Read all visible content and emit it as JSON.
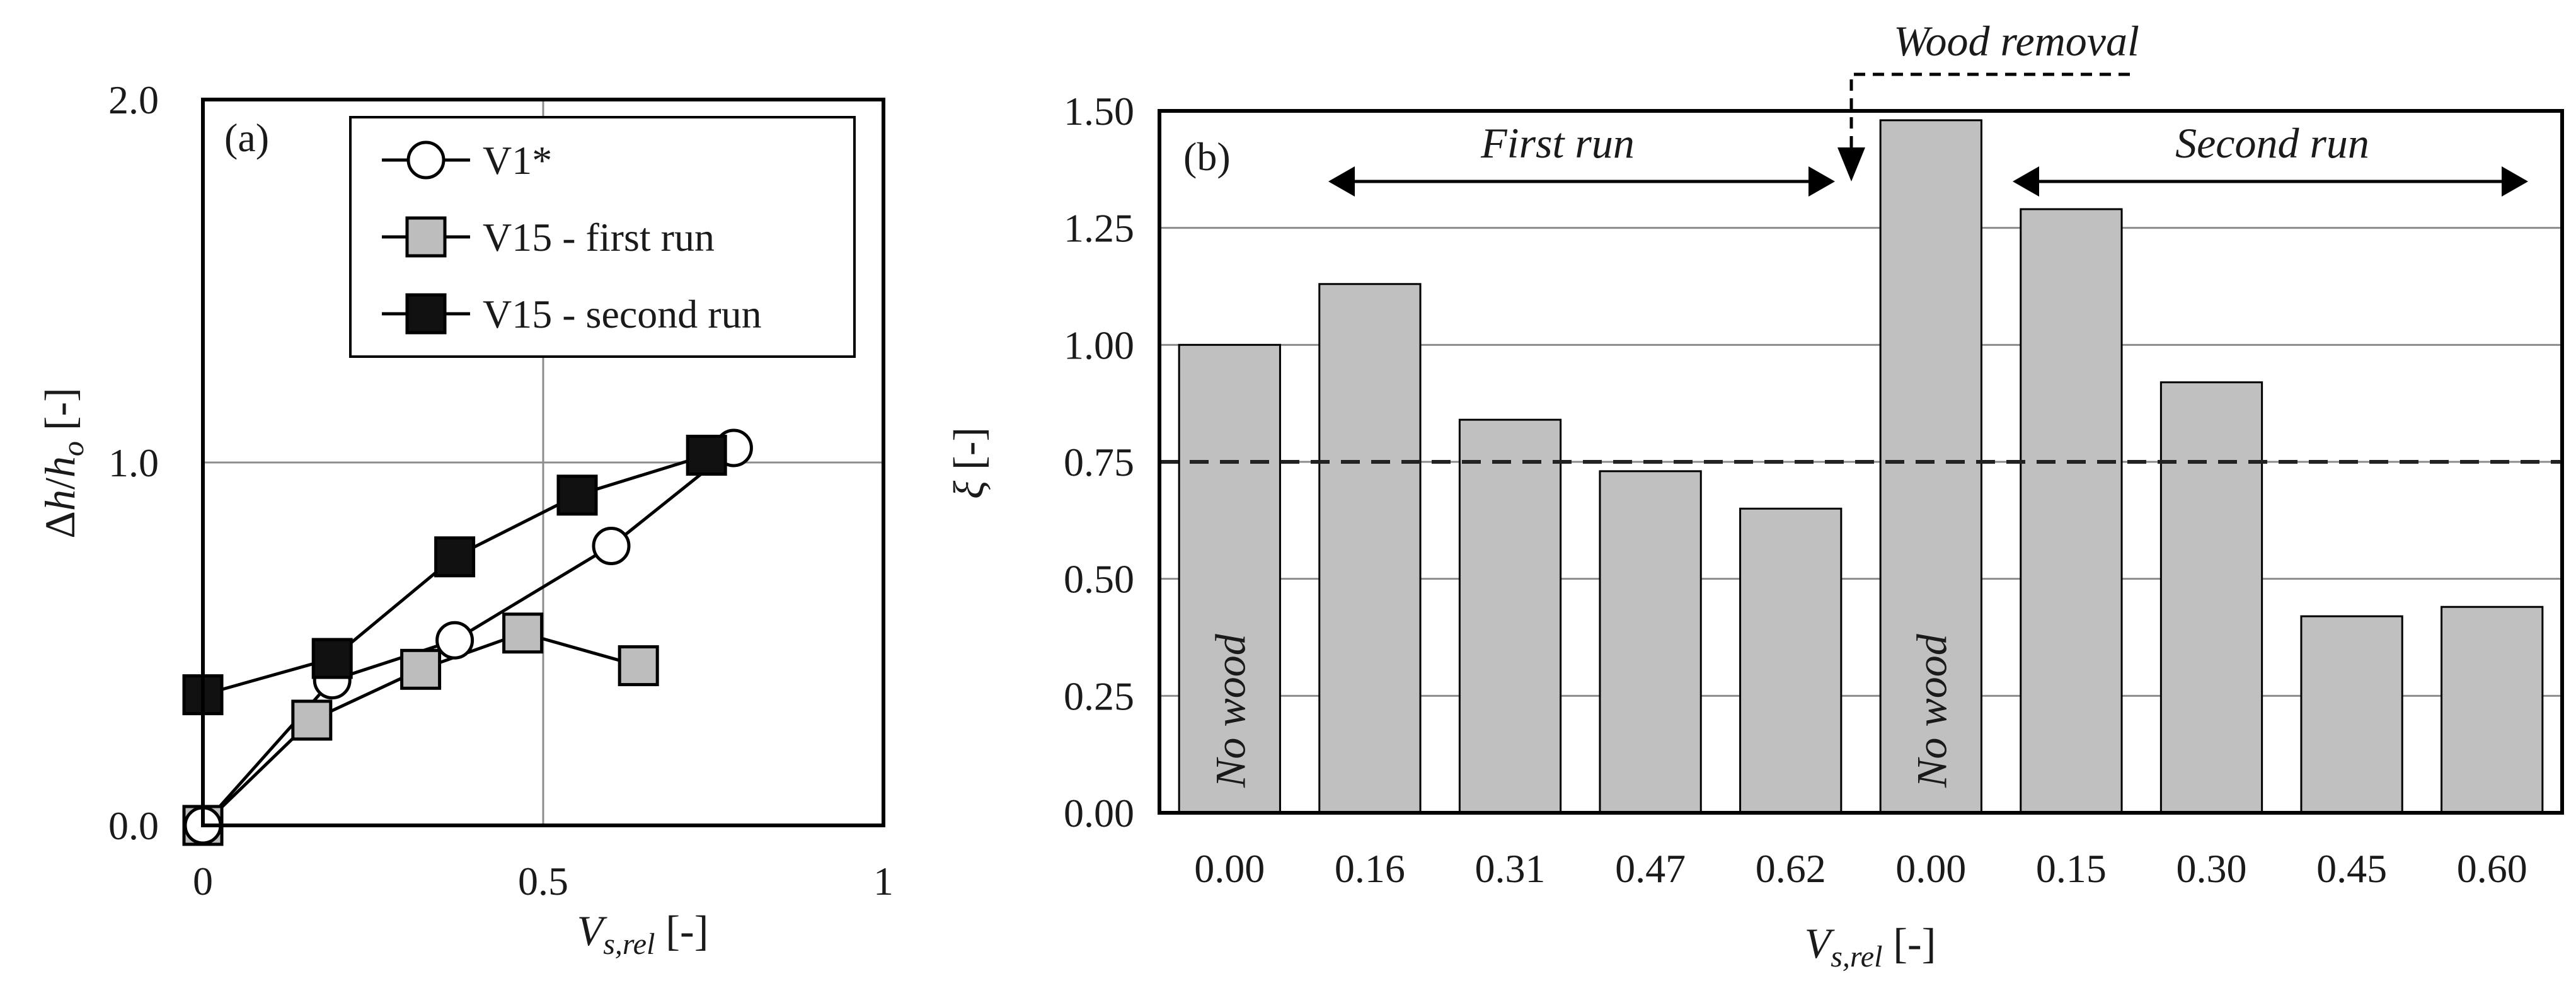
{
  "chart_data": [
    {
      "type": "line",
      "panel_label": "(a)",
      "xlabel": "V_s,rel [-]",
      "xlabel_main": "V",
      "xlabel_sub": "s,rel",
      "xlabel_unit": " [-]",
      "ylabel": "Δh/h_o [-]",
      "ylabel_pre": "Δ",
      "ylabel_h": "h",
      "ylabel_slash": "/",
      "ylabel_h2": "h",
      "ylabel_sub": "o",
      "ylabel_unit": " [-]",
      "xlim": [
        0,
        1
      ],
      "ylim": [
        0,
        2
      ],
      "xticks": [
        0,
        0.5,
        1
      ],
      "xtick_labels": [
        "0",
        "0.5",
        "1"
      ],
      "yticks": [
        0,
        1,
        2
      ],
      "ytick_labels": [
        "0.0",
        "1.0",
        "2.0"
      ],
      "grid": true,
      "legend_position": "top-right",
      "series": [
        {
          "name": "V1*",
          "marker": "circle-open",
          "x": [
            0.0,
            0.19,
            0.37,
            0.6,
            0.78
          ],
          "y": [
            0.0,
            0.4,
            0.51,
            0.77,
            1.04
          ]
        },
        {
          "name": "V15 - first run",
          "marker": "square-gray",
          "x": [
            0.0,
            0.16,
            0.32,
            0.47,
            0.64
          ],
          "y": [
            0.0,
            0.29,
            0.43,
            0.53,
            0.44
          ]
        },
        {
          "name": "V15 - second run",
          "marker": "square-black",
          "x": [
            0.0,
            0.19,
            0.37,
            0.55,
            0.74
          ],
          "y": [
            0.36,
            0.46,
            0.74,
            0.91,
            1.02
          ]
        }
      ]
    },
    {
      "type": "bar",
      "panel_label": "(b)",
      "xlabel": "V_s,rel [-]",
      "xlabel_main": "V",
      "xlabel_sub": "s,rel",
      "xlabel_unit": " [-]",
      "ylabel": "ξ [-]",
      "ylabel_main": "ξ",
      "ylabel_unit": " [-]",
      "categories": [
        "0.00",
        "0.16",
        "0.31",
        "0.47",
        "0.62",
        "0.00",
        "0.15",
        "0.30",
        "0.45",
        "0.60"
      ],
      "values": [
        1.0,
        1.13,
        0.84,
        0.73,
        0.65,
        1.48,
        1.29,
        0.92,
        0.42,
        0.44
      ],
      "ylim": [
        0,
        1.5
      ],
      "yticks": [
        0,
        0.25,
        0.5,
        0.75,
        1.0,
        1.25,
        1.5
      ],
      "ytick_labels": [
        "0.00",
        "0.25",
        "0.50",
        "0.75",
        "1.00",
        "1.25",
        "1.50"
      ],
      "grid": true,
      "reference_line": 0.75,
      "bar_labels": [
        {
          "index": 0,
          "text": "No wood"
        },
        {
          "index": 5,
          "text": "No wood"
        }
      ],
      "annotations": {
        "first_run": "First run",
        "second_run": "Second run",
        "wood_removal": "Wood removal"
      }
    }
  ],
  "colors": {
    "bar_fill": "#c0c0c0",
    "gray_marker": "#bdbdbd",
    "black_marker": "#111111",
    "grid": "#8c8c8c",
    "axis": "#000000"
  }
}
